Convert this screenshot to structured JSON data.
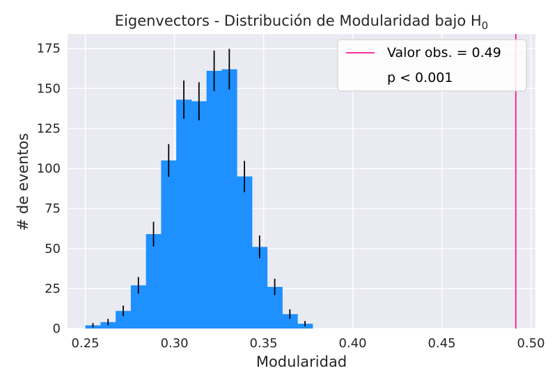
{
  "chart_data": {
    "type": "bar",
    "title": "Eigenvectors - Distribución de Modularidad bajo H",
    "title_subscript": "0",
    "xlabel": "Modularidad",
    "ylabel": "# de eventos",
    "xlim": [
      0.24,
      0.5025
    ],
    "ylim": [
      0,
      184
    ],
    "xticks": [
      0.25,
      0.3,
      0.35,
      0.4,
      0.45,
      0.5
    ],
    "xtick_labels": [
      "0.25",
      "0.30",
      "0.35",
      "0.40",
      "0.45",
      "0.50"
    ],
    "yticks": [
      0,
      25,
      50,
      75,
      100,
      125,
      150,
      175
    ],
    "ytick_labels": [
      "0",
      "25",
      "50",
      "75",
      "100",
      "125",
      "150",
      "175"
    ],
    "grid": true,
    "bar_color": "#1e90ff",
    "errorbar_color": "#000000",
    "background_color": "#eaeaf2",
    "bins": [
      {
        "left": 0.25,
        "right": 0.2585,
        "center": 0.25425,
        "count": 2
      },
      {
        "left": 0.2585,
        "right": 0.267,
        "center": 0.26275,
        "count": 4
      },
      {
        "left": 0.267,
        "right": 0.2755,
        "center": 0.27125,
        "count": 11
      },
      {
        "left": 0.2755,
        "right": 0.284,
        "center": 0.27975,
        "count": 27
      },
      {
        "left": 0.284,
        "right": 0.2925,
        "center": 0.28825,
        "count": 59
      },
      {
        "left": 0.2925,
        "right": 0.301,
        "center": 0.29675,
        "count": 105
      },
      {
        "left": 0.301,
        "right": 0.3095,
        "center": 0.30525,
        "count": 143
      },
      {
        "left": 0.3095,
        "right": 0.318,
        "center": 0.31375,
        "count": 142
      },
      {
        "left": 0.318,
        "right": 0.3265,
        "center": 0.32225,
        "count": 161
      },
      {
        "left": 0.3265,
        "right": 0.335,
        "center": 0.33075,
        "count": 162
      },
      {
        "left": 0.335,
        "right": 0.3435,
        "center": 0.33925,
        "count": 95
      },
      {
        "left": 0.3435,
        "right": 0.352,
        "center": 0.34775,
        "count": 51
      },
      {
        "left": 0.352,
        "right": 0.3605,
        "center": 0.35625,
        "count": 26
      },
      {
        "left": 0.3605,
        "right": 0.369,
        "center": 0.36475,
        "count": 9
      },
      {
        "left": 0.369,
        "right": 0.3775,
        "center": 0.37325,
        "count": 3
      }
    ],
    "observed_value": 0.4915,
    "observed_color": "#ff1493",
    "legend": {
      "placement": "top-right",
      "line_label": "Valor obs. = 0.49",
      "text_label": "p < 0.001"
    }
  }
}
